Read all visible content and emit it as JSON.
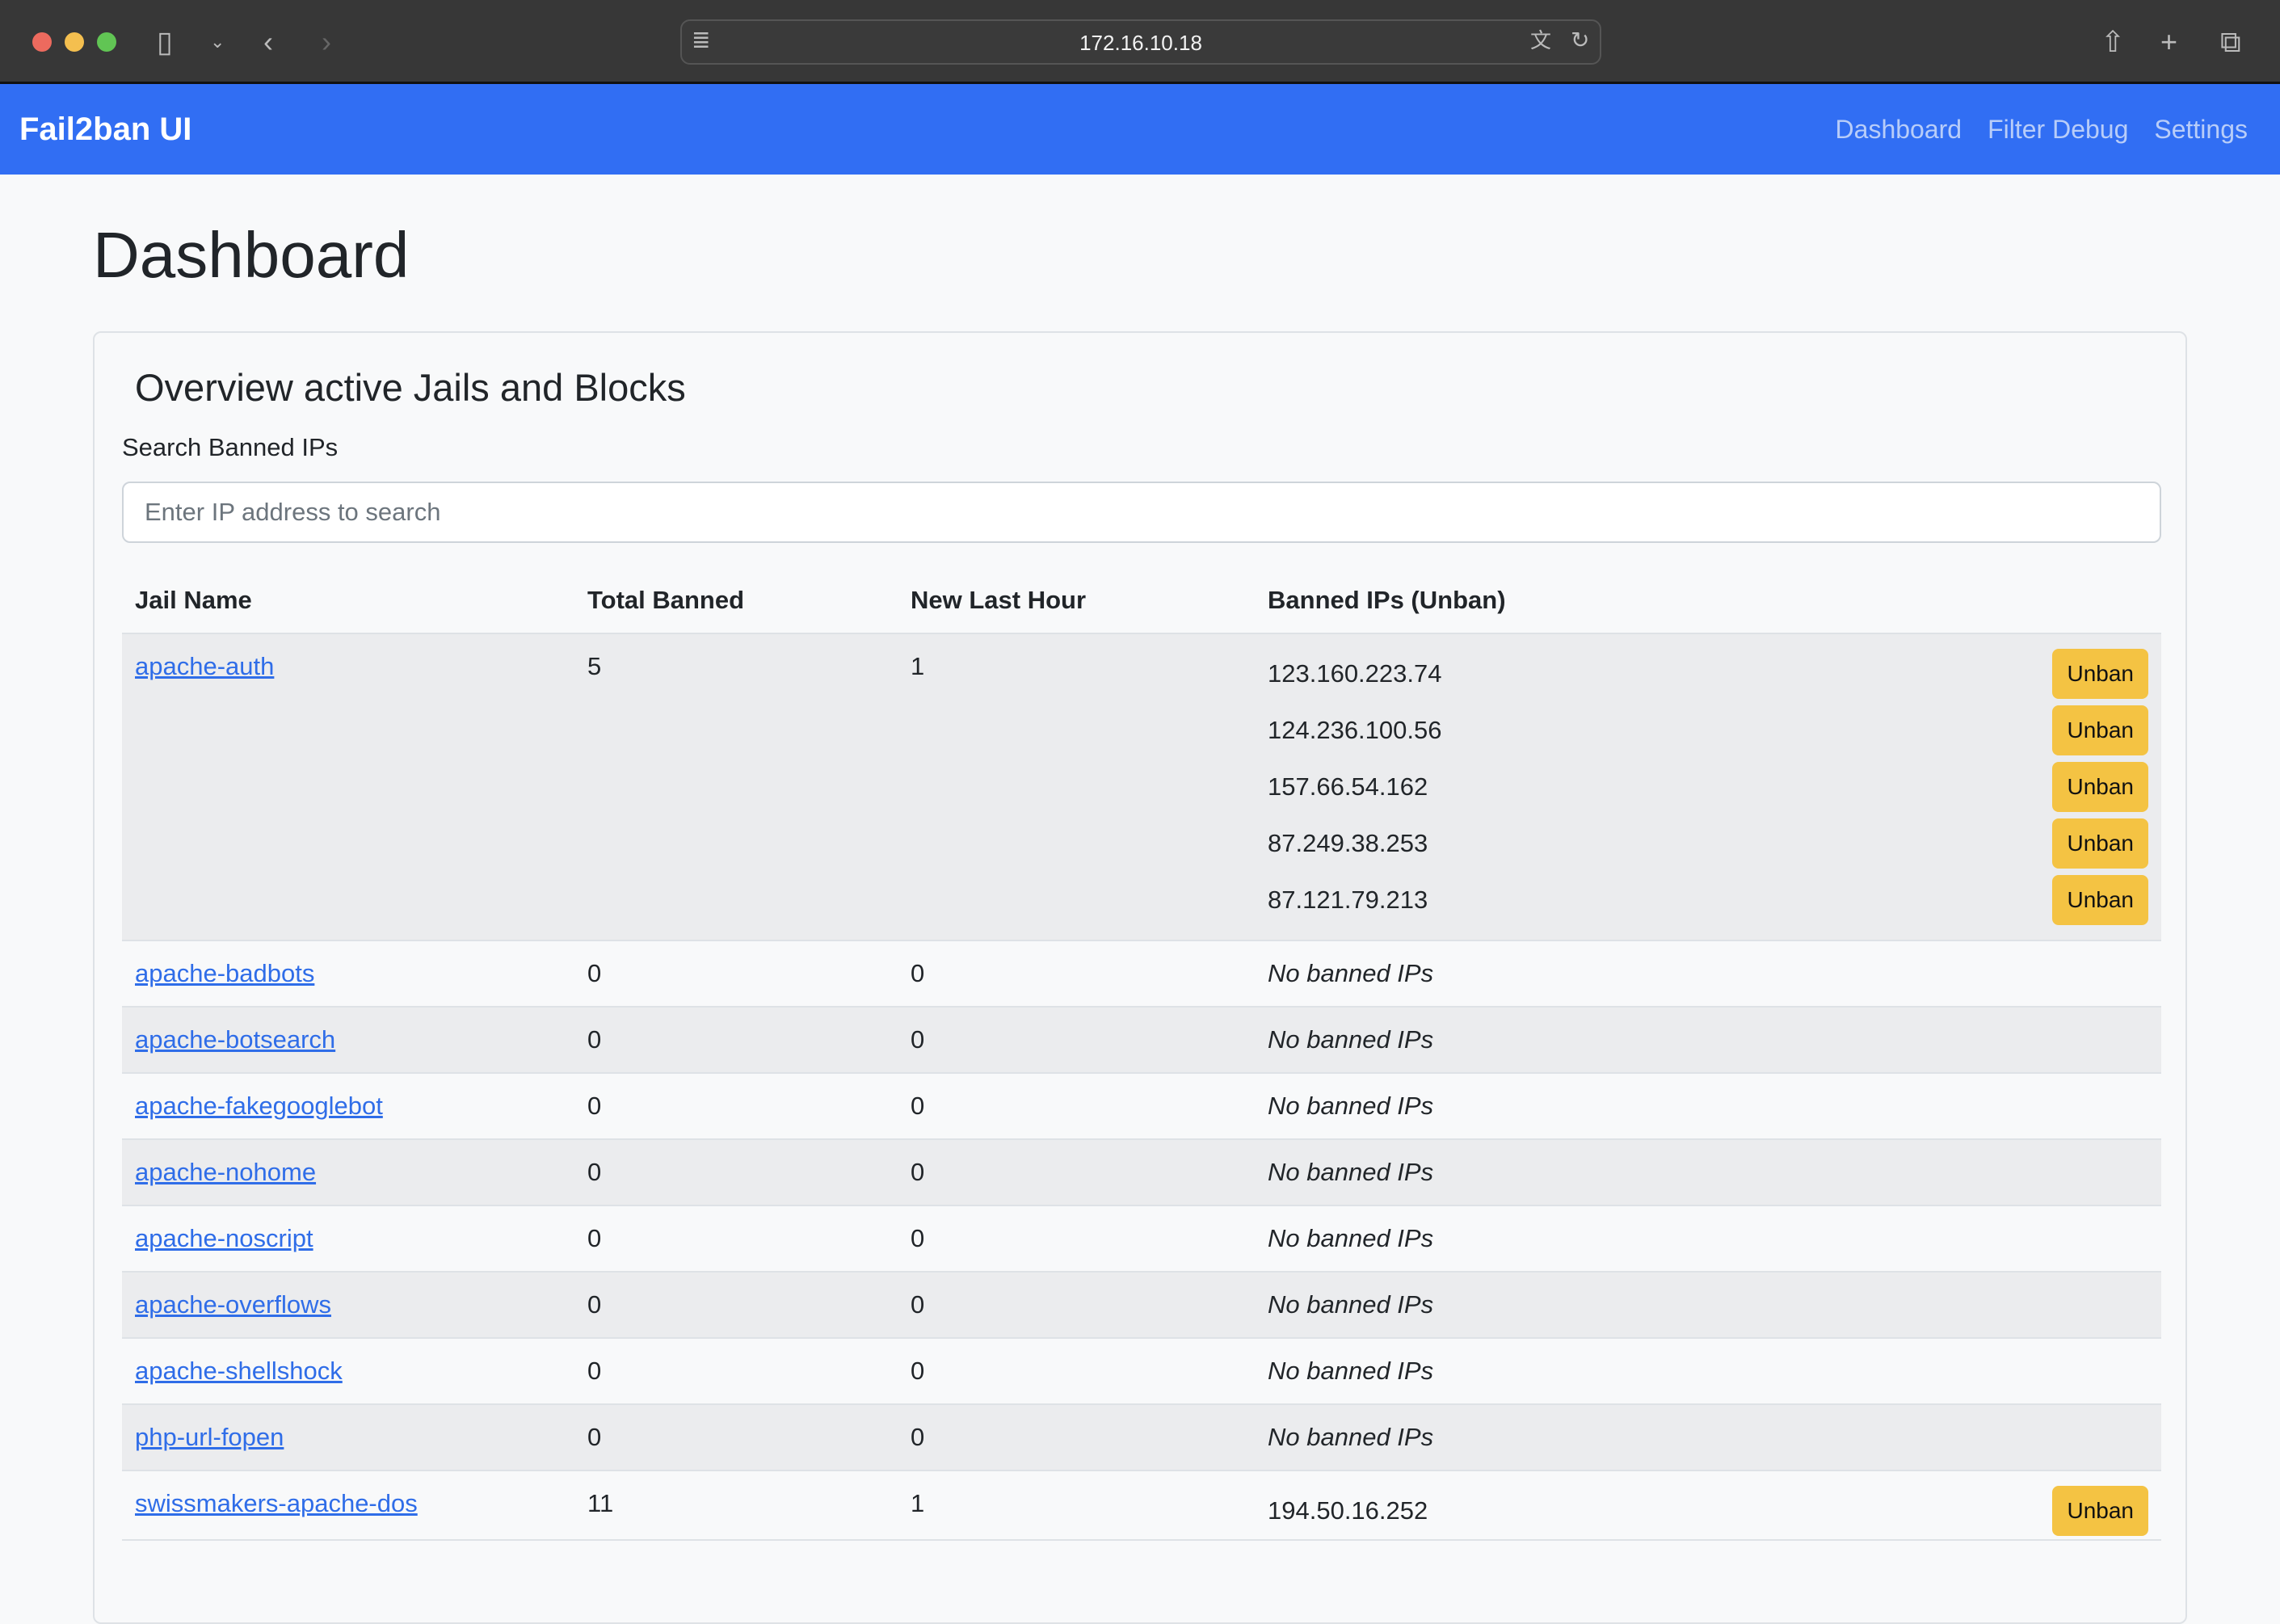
{
  "browser": {
    "url": "172.16.10.18"
  },
  "navbar": {
    "brand": "Fail2ban UI",
    "links": [
      "Dashboard",
      "Filter Debug",
      "Settings"
    ]
  },
  "page_title": "Dashboard",
  "card": {
    "title": "Overview active Jails and Blocks",
    "search_label": "Search Banned IPs",
    "search_placeholder": "Enter IP address to search"
  },
  "table": {
    "headers": [
      "Jail Name",
      "Total Banned",
      "New Last Hour",
      "Banned IPs (Unban)"
    ],
    "unban_label": "Unban",
    "no_ips_label": "No banned IPs",
    "rows": [
      {
        "jail": "apache-auth",
        "total": "5",
        "new": "1",
        "ips": [
          "123.160.223.74",
          "124.236.100.56",
          "157.66.54.162",
          "87.249.38.253",
          "87.121.79.213"
        ]
      },
      {
        "jail": "apache-badbots",
        "total": "0",
        "new": "0",
        "ips": []
      },
      {
        "jail": "apache-botsearch",
        "total": "0",
        "new": "0",
        "ips": []
      },
      {
        "jail": "apache-fakegooglebot",
        "total": "0",
        "new": "0",
        "ips": []
      },
      {
        "jail": "apache-nohome",
        "total": "0",
        "new": "0",
        "ips": []
      },
      {
        "jail": "apache-noscript",
        "total": "0",
        "new": "0",
        "ips": []
      },
      {
        "jail": "apache-overflows",
        "total": "0",
        "new": "0",
        "ips": []
      },
      {
        "jail": "apache-shellshock",
        "total": "0",
        "new": "0",
        "ips": []
      },
      {
        "jail": "php-url-fopen",
        "total": "0",
        "new": "0",
        "ips": []
      },
      {
        "jail": "swissmakers-apache-dos",
        "total": "11",
        "new": "1",
        "ips": [
          "194.50.16.252"
        ]
      }
    ]
  }
}
